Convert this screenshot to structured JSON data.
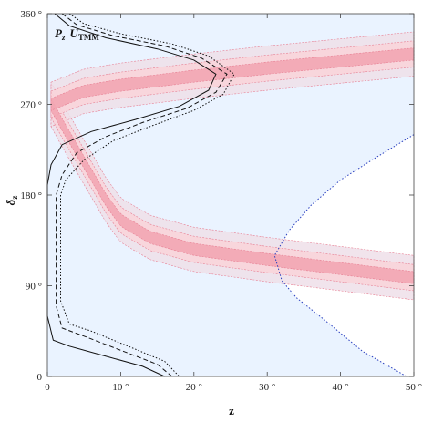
{
  "chart_data": {
    "type": "area",
    "xlabel": "z",
    "ylabel": "δ",
    "ylabel_sub": "z",
    "xlim": [
      0,
      50
    ],
    "ylim": [
      0,
      360
    ],
    "x_ticks": [
      0,
      10,
      20,
      30,
      40,
      50
    ],
    "x_tick_labels": [
      "0",
      "10 °",
      "20 °",
      "30 °",
      "40 °",
      "50 °"
    ],
    "y_ticks": [
      0,
      90,
      180,
      270,
      360
    ],
    "y_tick_labels": [
      "0",
      "90 °",
      "180 °",
      "270 °",
      "360 °"
    ],
    "annotation": {
      "p_main": "P",
      "p_sub": "z",
      "u_main": "U",
      "u_sub": "TMM"
    },
    "colors": {
      "region": "#eaf3ff",
      "band_inner": "#f2a6b2",
      "band_outer": "#f8d4da",
      "band_outermost": "#eedfe9",
      "contour": "#111111",
      "region_boundary": "#2a3fbf"
    },
    "series": [
      {
        "role": "band-center",
        "points": [
          [
            0.5,
            270
          ],
          [
            2,
            250
          ],
          [
            4,
            225
          ],
          [
            6,
            200
          ],
          [
            8,
            175
          ],
          [
            10,
            155
          ],
          [
            14,
            138
          ],
          [
            20,
            126
          ],
          [
            30,
            116
          ],
          [
            40,
            107
          ],
          [
            50,
            98
          ]
        ]
      },
      {
        "role": "band-center",
        "points": [
          [
            0.5,
            270
          ],
          [
            5,
            283
          ],
          [
            10,
            289
          ],
          [
            20,
            298
          ],
          [
            30,
            306
          ],
          [
            40,
            313
          ],
          [
            50,
            320
          ]
        ]
      },
      {
        "role": "contour-solid",
        "points": [
          [
            1,
            360
          ],
          [
            3,
            348
          ],
          [
            8,
            336
          ],
          [
            15,
            325
          ],
          [
            20,
            314
          ],
          [
            23,
            300
          ],
          [
            22,
            284
          ],
          [
            18,
            268
          ],
          [
            12,
            255
          ],
          [
            6,
            243
          ],
          [
            2,
            230
          ],
          [
            0.5,
            210
          ],
          [
            0,
            190
          ],
          [
            0,
            60
          ],
          [
            0.8,
            36
          ],
          [
            3,
            30
          ],
          [
            8,
            20
          ],
          [
            13,
            10
          ],
          [
            16,
            0
          ]
        ]
      },
      {
        "role": "contour-dashed",
        "points": [
          [
            2,
            360
          ],
          [
            4,
            349
          ],
          [
            9,
            338
          ],
          [
            16,
            328
          ],
          [
            21,
            316
          ],
          [
            24.5,
            300
          ],
          [
            23,
            282
          ],
          [
            19,
            266
          ],
          [
            13,
            252
          ],
          [
            8,
            238
          ],
          [
            4,
            222
          ],
          [
            2,
            200
          ],
          [
            1.2,
            180
          ],
          [
            1.2,
            70
          ],
          [
            2,
            48
          ],
          [
            5,
            40
          ],
          [
            10,
            26
          ],
          [
            15,
            12
          ],
          [
            17,
            0
          ]
        ]
      },
      {
        "role": "contour-dotted",
        "points": [
          [
            3,
            360
          ],
          [
            5,
            350
          ],
          [
            10,
            340
          ],
          [
            17,
            330
          ],
          [
            22,
            318
          ],
          [
            25.5,
            300
          ],
          [
            24,
            280
          ],
          [
            20,
            264
          ],
          [
            14,
            248
          ],
          [
            9,
            234
          ],
          [
            5,
            215
          ],
          [
            2.5,
            195
          ],
          [
            1.8,
            180
          ],
          [
            1.8,
            75
          ],
          [
            3,
            52
          ],
          [
            6,
            45
          ],
          [
            11,
            30
          ],
          [
            16,
            15
          ],
          [
            18,
            0
          ]
        ]
      },
      {
        "role": "region-boundary",
        "points": [
          [
            50,
            240
          ],
          [
            45,
            218
          ],
          [
            40,
            195
          ],
          [
            36,
            170
          ],
          [
            33,
            145
          ],
          [
            31,
            120
          ],
          [
            32,
            95
          ],
          [
            34,
            78
          ],
          [
            38,
            55
          ],
          [
            43,
            25
          ],
          [
            49,
            0
          ]
        ]
      }
    ]
  }
}
